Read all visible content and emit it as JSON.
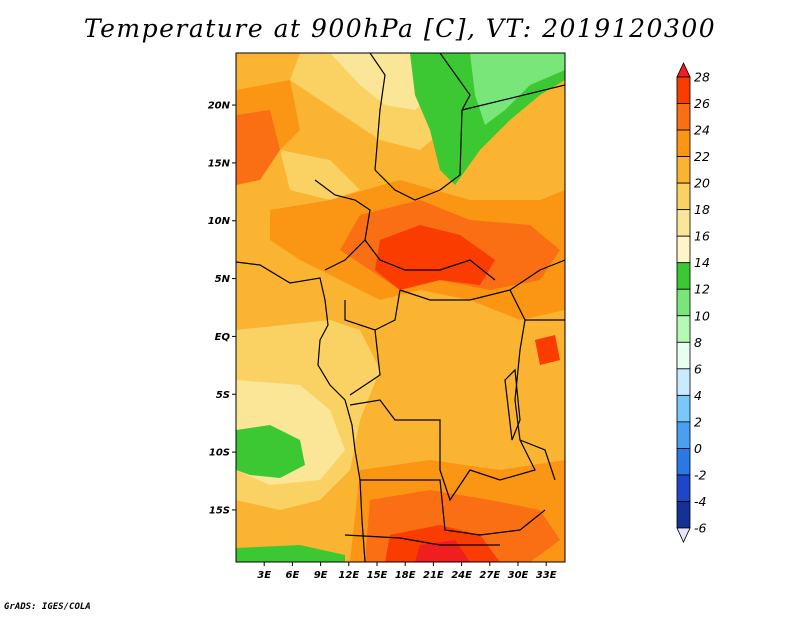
{
  "title": "Temperature at 900hPa [C], VT: 2019120300",
  "credit": "GrADS: IGES/COLA",
  "map": {
    "variable": "Temperature at 900hPa",
    "units": "C",
    "valid_time": "2019120300",
    "lat_range": [
      -19.5,
      24.5
    ],
    "lon_range": [
      0,
      35
    ],
    "lat_ticks": [
      {
        "value": 20,
        "label": "20N"
      },
      {
        "value": 15,
        "label": "15N"
      },
      {
        "value": 10,
        "label": "10N"
      },
      {
        "value": 5,
        "label": "5N"
      },
      {
        "value": 0,
        "label": "EQ"
      },
      {
        "value": -5,
        "label": "5S"
      },
      {
        "value": -10,
        "label": "10S"
      },
      {
        "value": -15,
        "label": "15S"
      }
    ],
    "lon_ticks": [
      {
        "value": 3,
        "label": "3E"
      },
      {
        "value": 6,
        "label": "6E"
      },
      {
        "value": 9,
        "label": "9E"
      },
      {
        "value": 12,
        "label": "12E"
      },
      {
        "value": 15,
        "label": "15E"
      },
      {
        "value": 18,
        "label": "18E"
      },
      {
        "value": 21,
        "label": "21E"
      },
      {
        "value": 24,
        "label": "24E"
      },
      {
        "value": 27,
        "label": "27E"
      },
      {
        "value": 30,
        "label": "30E"
      },
      {
        "value": 33,
        "label": "33E"
      }
    ]
  },
  "colorbar": {
    "levels": [
      "28",
      "26",
      "24",
      "22",
      "20",
      "18",
      "16",
      "14",
      "12",
      "10",
      "8",
      "6",
      "4",
      "2",
      "0",
      "-2",
      "-4",
      "-6"
    ],
    "colors": [
      "#f01e1e",
      "#fa3c00",
      "#fa6e14",
      "#fa9614",
      "#fab432",
      "#fad264",
      "#fae696",
      "#fff5c8",
      "#3cc832",
      "#78e678",
      "#b4fab4",
      "#e6fff0",
      "#c8ebff",
      "#78c8fa",
      "#4aa0f0",
      "#2a78e6",
      "#1e46c8",
      "#143296",
      "#0a0a78"
    ]
  }
}
